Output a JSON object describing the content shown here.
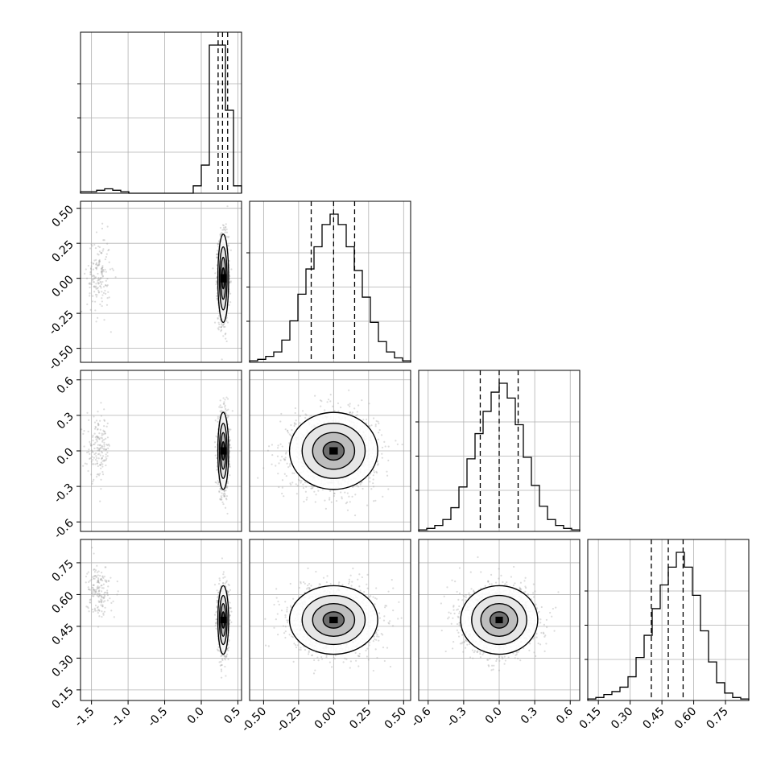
{
  "chart_data": {
    "type": "corner",
    "title": "",
    "parameters": [
      {
        "range": [
          -1.65,
          0.55
        ],
        "ticks": [
          "-1.5",
          "-1.0",
          "-0.5",
          "0.0",
          "0.5"
        ],
        "quantiles": [
          0.23,
          0.29,
          0.36
        ]
      },
      {
        "range": [
          -0.6,
          0.55
        ],
        "ticks": [
          "-0.50",
          "-0.25",
          "0.00",
          "0.25",
          "0.50"
        ],
        "quantiles": [
          -0.16,
          0.0,
          0.15
        ]
      },
      {
        "range": [
          -0.68,
          0.68
        ],
        "ticks": [
          "-0.6",
          "-0.3",
          "0.0",
          "0.3",
          "0.6"
        ],
        "quantiles": [
          -0.16,
          0.0,
          0.16
        ]
      },
      {
        "range": [
          0.1,
          0.86
        ],
        "ticks": [
          "0.15",
          "0.30",
          "0.45",
          "0.60",
          "0.75"
        ],
        "quantiles": [
          0.4,
          0.48,
          0.55
        ]
      }
    ],
    "histograms": [
      {
        "bins": 20,
        "counts": [
          0.01,
          0.01,
          0.02,
          0.03,
          0.02,
          0.01,
          0,
          0,
          0,
          0,
          0,
          0,
          0,
          0,
          0.05,
          0.19,
          1.0,
          1.0,
          0.56,
          0.05
        ]
      },
      {
        "bins": 20,
        "counts": [
          0.01,
          0.02,
          0.04,
          0.07,
          0.15,
          0.28,
          0.46,
          0.63,
          0.78,
          0.93,
          1.0,
          0.93,
          0.78,
          0.62,
          0.44,
          0.27,
          0.14,
          0.07,
          0.03,
          0.01
        ]
      },
      {
        "bins": 20,
        "counts": [
          0.01,
          0.02,
          0.04,
          0.08,
          0.16,
          0.3,
          0.49,
          0.66,
          0.81,
          0.94,
          1.0,
          0.9,
          0.72,
          0.5,
          0.31,
          0.17,
          0.08,
          0.04,
          0.02,
          0.01
        ]
      },
      {
        "bins": 20,
        "counts": [
          0.01,
          0.02,
          0.04,
          0.06,
          0.09,
          0.16,
          0.29,
          0.44,
          0.62,
          0.78,
          0.9,
          1.0,
          0.9,
          0.71,
          0.47,
          0.26,
          0.12,
          0.05,
          0.02,
          0.01
        ]
      }
    ],
    "grid": true
  }
}
